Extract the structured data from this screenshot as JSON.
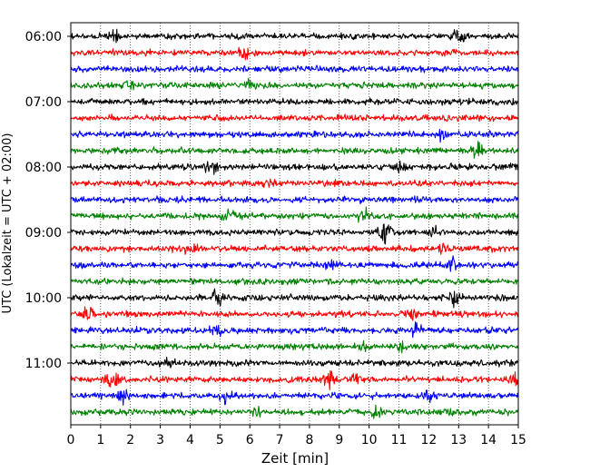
{
  "chart_data": {
    "type": "line",
    "title": "",
    "xlabel": "Zeit  [min]",
    "ylabel": "UTC (Lokalzeit = UTC + 02:00)",
    "xlim": [
      0,
      15
    ],
    "x_ticks": [
      "0",
      "1",
      "2",
      "3",
      "4",
      "5",
      "6",
      "7",
      "8",
      "9",
      "10",
      "11",
      "12",
      "13",
      "14",
      "15"
    ],
    "y_ticks": [
      "06:00",
      "07:00",
      "08:00",
      "09:00",
      "10:00",
      "11:00"
    ],
    "grid": "vertical dotted lines at each minute",
    "traces_per_hour": 4,
    "trace_colors": [
      "#000000",
      "#ff0000",
      "#0000ff",
      "#008000"
    ],
    "traces": [
      {
        "start": "06:00",
        "color": "#000000",
        "events": [
          [
            1.4,
            2.0
          ],
          [
            13.0,
            2.5
          ]
        ]
      },
      {
        "start": "06:15",
        "color": "#ff0000",
        "events": [
          [
            5.8,
            1.5
          ]
        ]
      },
      {
        "start": "06:30",
        "color": "#0000ff",
        "events": []
      },
      {
        "start": "06:45",
        "color": "#008000",
        "events": [
          [
            2.0,
            1.3
          ],
          [
            6.0,
            1.3
          ]
        ]
      },
      {
        "start": "07:00",
        "color": "#000000",
        "events": []
      },
      {
        "start": "07:15",
        "color": "#ff0000",
        "events": []
      },
      {
        "start": "07:30",
        "color": "#0000ff",
        "events": [
          [
            12.5,
            2.0
          ]
        ]
      },
      {
        "start": "07:45",
        "color": "#008000",
        "events": [
          [
            13.6,
            2.0
          ]
        ]
      },
      {
        "start": "08:00",
        "color": "#000000",
        "events": [
          [
            4.7,
            1.6
          ],
          [
            11.0,
            1.5
          ],
          [
            14.7,
            1.5
          ]
        ]
      },
      {
        "start": "08:15",
        "color": "#ff0000",
        "events": [
          [
            6.6,
            1.5
          ]
        ]
      },
      {
        "start": "08:30",
        "color": "#0000ff",
        "events": []
      },
      {
        "start": "08:45",
        "color": "#008000",
        "events": [
          [
            5.3,
            1.5
          ],
          [
            9.8,
            2.5
          ]
        ]
      },
      {
        "start": "09:00",
        "color": "#000000",
        "events": [
          [
            10.5,
            3.5
          ],
          [
            12.2,
            1.4
          ]
        ]
      },
      {
        "start": "09:15",
        "color": "#ff0000",
        "events": [
          [
            4.0,
            1.2
          ],
          [
            12.5,
            1.3
          ]
        ]
      },
      {
        "start": "09:30",
        "color": "#0000ff",
        "events": [
          [
            8.8,
            1.3
          ],
          [
            12.8,
            1.8
          ]
        ]
      },
      {
        "start": "09:45",
        "color": "#008000",
        "events": []
      },
      {
        "start": "10:00",
        "color": "#000000",
        "events": [
          [
            4.9,
            3.0
          ],
          [
            12.9,
            2.8
          ]
        ]
      },
      {
        "start": "10:15",
        "color": "#ff0000",
        "events": [
          [
            0.6,
            2.5
          ],
          [
            11.4,
            1.5
          ]
        ]
      },
      {
        "start": "10:30",
        "color": "#0000ff",
        "events": [
          [
            4.9,
            1.6
          ],
          [
            11.6,
            1.8
          ]
        ]
      },
      {
        "start": "10:45",
        "color": "#008000",
        "events": [
          [
            9.8,
            1.4
          ],
          [
            11.0,
            1.3
          ]
        ]
      },
      {
        "start": "11:00",
        "color": "#000000",
        "events": [
          [
            3.3,
            1.3
          ]
        ]
      },
      {
        "start": "11:15",
        "color": "#ff0000",
        "events": [
          [
            1.4,
            2.3
          ],
          [
            8.7,
            2.6
          ],
          [
            9.5,
            2.0
          ],
          [
            14.9,
            1.5
          ]
        ]
      },
      {
        "start": "11:30",
        "color": "#0000ff",
        "events": [
          [
            1.7,
            2.0
          ],
          [
            5.2,
            2.0
          ],
          [
            12.0,
            1.5
          ]
        ]
      },
      {
        "start": "11:45",
        "color": "#008000",
        "events": [
          [
            6.2,
            1.5
          ],
          [
            10.2,
            1.8
          ],
          [
            12.8,
            1.5
          ]
        ]
      }
    ]
  }
}
